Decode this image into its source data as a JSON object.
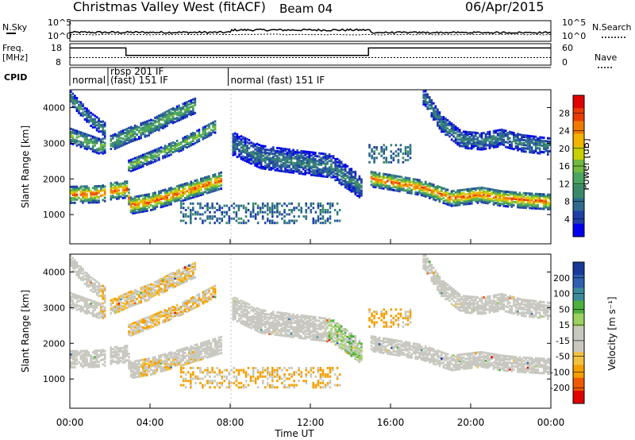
{
  "header": {
    "station": "Christmas Valley West (fitACF)",
    "beam": "Beam 04",
    "date": "06/Apr/2015"
  },
  "strips": {
    "nsky_label": "N.Sky",
    "nsearch_label": "N.Search",
    "noise_ticks": [
      "10^5",
      "10^0"
    ],
    "freq_label_line1": "Freq.",
    "freq_label_line2": "[MHz]",
    "freq_ticks": [
      "18",
      "8"
    ],
    "nave_label": "Nave",
    "nave_ticks": [
      "60",
      "0"
    ],
    "cpid_label": "CPID",
    "cpid_segments": [
      {
        "label": "normal",
        "start_h": 0.0,
        "end_h": 1.9
      },
      {
        "label": "rbsp 201 IF\n(fast) 151 IF",
        "start_h": 1.9,
        "end_h": 7.9
      },
      {
        "label": "normal (fast) 151 IF",
        "start_h": 7.9,
        "end_h": 24.0
      }
    ],
    "freq_steps": [
      {
        "start_h": 0.0,
        "end_h": 2.8,
        "value": 16
      },
      {
        "start_h": 2.8,
        "end_h": 14.9,
        "value": 12.5
      },
      {
        "start_h": 14.9,
        "end_h": 24.0,
        "value": 16
      }
    ]
  },
  "colorbars": {
    "power": {
      "label": "Power [dB]",
      "ticks": [
        "28",
        "24",
        "20",
        "16",
        "12",
        "8",
        "4"
      ],
      "colors": [
        "#0000ee",
        "#1e3fa8",
        "#2e6b8e",
        "#3a8a6a",
        "#4aa560",
        "#70bb40",
        "#c8d000",
        "#f2b400",
        "#f07a00",
        "#ea3a00",
        "#e00000"
      ]
    },
    "velocity": {
      "label": "Velocity [m s⁻¹]",
      "ticks": [
        "200",
        "100",
        "50",
        "15",
        "-15",
        "-50",
        "-100",
        "-200"
      ],
      "colors": [
        "#e00000",
        "#ee5a00",
        "#f3a000",
        "#f2c040",
        "#c8c8c0",
        "#c8c8c0",
        "#9ed060",
        "#4fb040",
        "#3a8a9a",
        "#2e5fb0",
        "#1a3a9a"
      ]
    }
  },
  "chart_data": [
    {
      "type": "heatmap",
      "title": "Power",
      "xlabel": "Time UT",
      "ylabel": "Slant Range [km]",
      "xlim": [
        0,
        24
      ],
      "ylim": [
        180,
        4500
      ],
      "x_ticks": [
        "00:00",
        "04:00",
        "08:00",
        "12:00",
        "16:00",
        "20:00",
        "00:00"
      ],
      "y_ticks": [
        1000,
        2000,
        3000,
        4000
      ],
      "bands": [
        {
          "name": "lower",
          "points": [
            [
              0,
              1600
            ],
            [
              1.5,
              1620
            ],
            [
              2.0,
              1700
            ],
            [
              2.8,
              1750
            ],
            [
              3.0,
              1300
            ],
            [
              4.0,
              1400
            ],
            [
              5.5,
              1650
            ],
            [
              7.5,
              2000
            ]
          ],
          "width": 240,
          "power": 26
        },
        {
          "name": "upper-a",
          "points": [
            [
              0,
              3250
            ],
            [
              1.5,
              2950
            ],
            [
              2.0,
              3050
            ],
            [
              3.0,
              3300
            ],
            [
              4.0,
              3500
            ],
            [
              5.0,
              3800
            ],
            [
              6.2,
              4100
            ]
          ],
          "width": 220,
          "power": 14
        },
        {
          "name": "upper-b",
          "points": [
            [
              2.9,
              2400
            ],
            [
              4.0,
              2650
            ],
            [
              5.5,
              3000
            ],
            [
              7.2,
              3500
            ]
          ],
          "width": 170,
          "power": 16
        },
        {
          "name": "upper-c",
          "points": [
            [
              0,
              4300
            ],
            [
              1.0,
              3700
            ],
            [
              2.0,
              3300
            ]
          ],
          "width": 180,
          "power": 10
        },
        {
          "name": "morning",
          "points": [
            [
              8.0,
              3050
            ],
            [
              9.5,
              2650
            ],
            [
              11.5,
              2500
            ],
            [
              13.0,
              2400
            ],
            [
              14.5,
              1800
            ]
          ],
          "width": 320,
          "power": 8
        },
        {
          "name": "evening-main",
          "points": [
            [
              14.9,
              2050
            ],
            [
              16.0,
              1950
            ],
            [
              17.5,
              1800
            ],
            [
              19.0,
              1500
            ],
            [
              20.5,
              1600
            ],
            [
              21.5,
              1500
            ],
            [
              22.5,
              1450
            ],
            [
              24.0,
              1400
            ]
          ],
          "width": 220,
          "power": 26
        },
        {
          "name": "evening-top",
          "points": [
            [
              17.5,
              4450
            ],
            [
              18.5,
              3600
            ],
            [
              19.5,
              3150
            ],
            [
              20.5,
              3100
            ],
            [
              21.5,
              3200
            ],
            [
              22.5,
              3050
            ],
            [
              24.0,
              2950
            ]
          ],
          "width": 240,
          "power": 8
        }
      ],
      "patches": [
        {
          "x": [
            5.5,
            13.5
          ],
          "y": [
            800,
            1400
          ],
          "power": 6
        },
        {
          "x": [
            14.9,
            17.0
          ],
          "y": [
            2500,
            3000
          ],
          "power": 6
        }
      ]
    },
    {
      "type": "heatmap",
      "title": "Velocity",
      "xlabel": "Time UT",
      "ylabel": "Slant Range [km]",
      "xlim": [
        0,
        24
      ],
      "ylim": [
        180,
        4500
      ],
      "x_ticks": [
        "00:00",
        "04:00",
        "08:00",
        "12:00",
        "16:00",
        "20:00",
        "00:00"
      ],
      "y_ticks": [
        1000,
        2000,
        3000,
        4000
      ],
      "regions": [
        {
          "x": [
            1.5,
            7.5
          ],
          "y": [
            2200,
            4400
          ],
          "velocity": -60
        },
        {
          "x": [
            3.5,
            9.5
          ],
          "y": [
            800,
            1600
          ],
          "velocity": -80
        },
        {
          "x": [
            12.8,
            14.5
          ],
          "y": [
            1500,
            2700
          ],
          "velocity": 40
        }
      ]
    }
  ]
}
